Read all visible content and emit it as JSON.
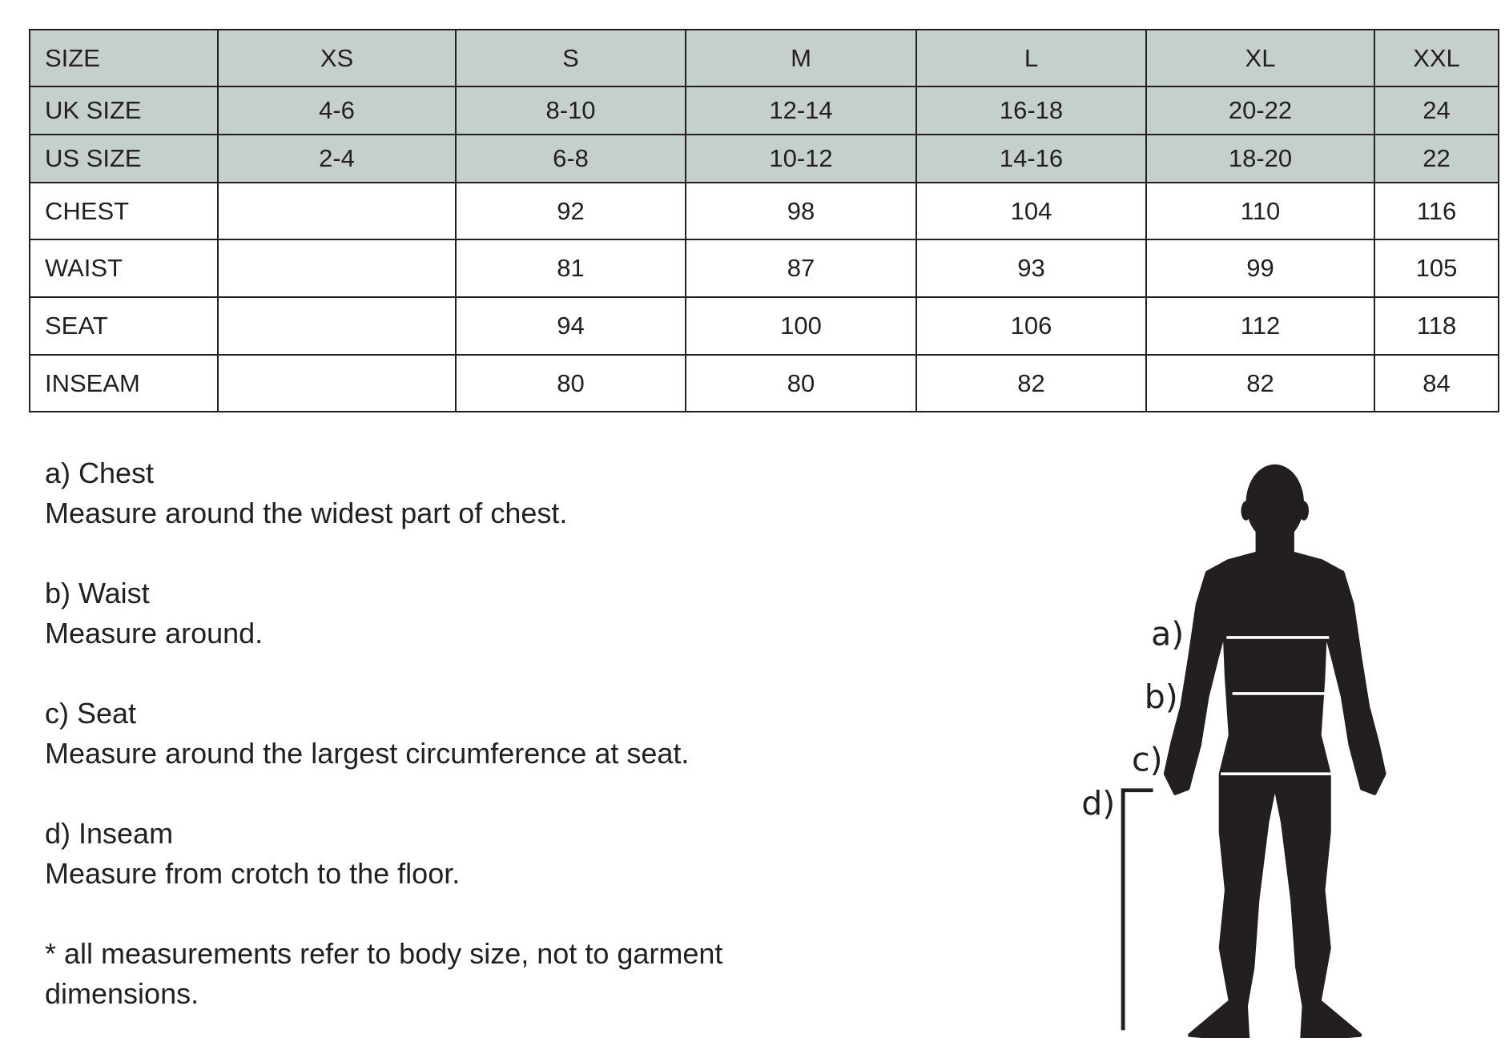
{
  "table": {
    "header": [
      "SIZE",
      "XS",
      "S",
      "M",
      "L",
      "XL",
      "XXL"
    ],
    "rows": [
      {
        "label": "UK SIZE",
        "values": [
          "4-6",
          "8-10",
          "12-14",
          "16-18",
          "20-22",
          "24"
        ]
      },
      {
        "label": "US SIZE",
        "values": [
          "2-4",
          "6-8",
          "10-12",
          "14-16",
          "18-20",
          "22"
        ]
      },
      {
        "label": "CHEST",
        "values": [
          "",
          "92",
          "98",
          "104",
          "110",
          "116"
        ]
      },
      {
        "label": "WAIST",
        "values": [
          "",
          "81",
          "87",
          "93",
          "99",
          "105"
        ]
      },
      {
        "label": "SEAT",
        "values": [
          "",
          "94",
          "100",
          "106",
          "112",
          "118"
        ]
      },
      {
        "label": "INSEAM",
        "values": [
          "",
          "80",
          "80",
          "82",
          "82",
          "84"
        ]
      }
    ]
  },
  "notes": [
    {
      "title": "a) Chest",
      "text": "Measure around the widest part of chest."
    },
    {
      "title": "b) Waist",
      "text": "Measure around."
    },
    {
      "title": "c) Seat",
      "text": "Measure around the largest circumference at seat."
    },
    {
      "title": "d) Inseam",
      "text": "Measure from crotch to the floor."
    }
  ],
  "footnote": "* all measurements refer to body size, not to garment dimensions.",
  "figure": {
    "labels": [
      "a)",
      "b)",
      "c)",
      "d)"
    ]
  },
  "colors": {
    "header_bg": "#c5d0cc",
    "ink": "#231f20"
  }
}
